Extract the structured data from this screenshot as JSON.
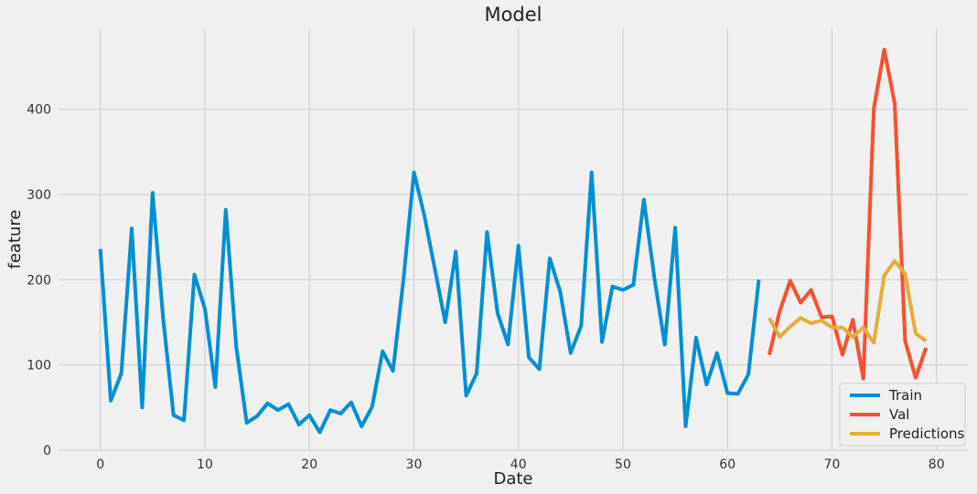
{
  "chart_data": {
    "type": "line",
    "title": "Model",
    "xlabel": "Date",
    "ylabel": "feature",
    "xlim": [
      -4,
      83
    ],
    "ylim": [
      0,
      495
    ],
    "xticks": [
      0,
      10,
      20,
      30,
      40,
      50,
      60,
      70,
      80
    ],
    "yticks": [
      0,
      100,
      200,
      300,
      400
    ],
    "grid": true,
    "legend_position": "lower-right",
    "series": [
      {
        "name": "Train",
        "color": "#008fd5",
        "x": [
          0,
          1,
          2,
          3,
          4,
          5,
          6,
          7,
          8,
          9,
          10,
          11,
          12,
          13,
          14,
          15,
          16,
          17,
          18,
          19,
          20,
          21,
          22,
          23,
          24,
          25,
          26,
          27,
          28,
          29,
          30,
          31,
          32,
          33,
          34,
          35,
          36,
          37,
          38,
          39,
          40,
          41,
          42,
          43,
          44,
          45,
          46,
          47,
          48,
          49,
          50,
          51,
          52,
          53,
          54,
          55,
          56,
          57,
          58,
          59,
          60,
          61,
          62,
          63
        ],
        "y": [
          236,
          58,
          90,
          260,
          50,
          302,
          155,
          41,
          35,
          206,
          166,
          74,
          282,
          122,
          32,
          40,
          55,
          47,
          54,
          30,
          41,
          21,
          47,
          43,
          56,
          28,
          51,
          116,
          93,
          200,
          326,
          275,
          213,
          150,
          233,
          64,
          90,
          256,
          161,
          124,
          240,
          109,
          95,
          225,
          186,
          114,
          146,
          326,
          127,
          192,
          188,
          194,
          294,
          203,
          124,
          261,
          28,
          132,
          77,
          114,
          67,
          66,
          89,
          200
        ]
      },
      {
        "name": "Val",
        "color": "#fc4f30",
        "x": [
          64,
          65,
          66,
          67,
          68,
          69,
          70,
          71,
          72,
          73,
          74,
          75,
          76,
          77,
          78,
          79
        ],
        "y": [
          112,
          163,
          199,
          173,
          188,
          156,
          157,
          112,
          153,
          84,
          401,
          470,
          407,
          128,
          85,
          120
        ]
      },
      {
        "name": "Predictions",
        "color": "#e5ae38",
        "x": [
          64,
          65,
          66,
          67,
          68,
          69,
          70,
          71,
          72,
          73,
          74,
          75,
          76,
          77,
          78,
          79
        ],
        "y": [
          155,
          133,
          145,
          155,
          149,
          152,
          144,
          144,
          133,
          144,
          126,
          205,
          222,
          207,
          137,
          128
        ]
      }
    ]
  }
}
